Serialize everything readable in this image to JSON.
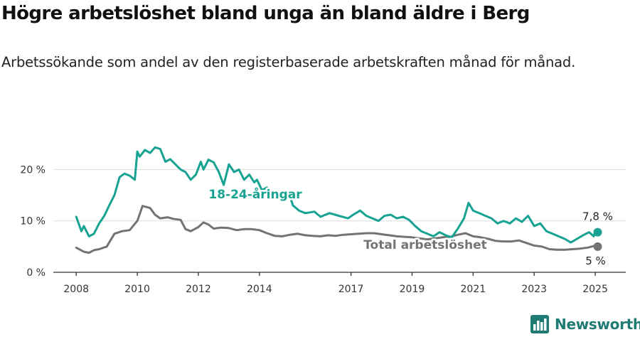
{
  "title": "Högre arbetslöshet bland unga än bland äldre i Berg",
  "subtitle": "Arbetssökande som andel av den registerbaserade arbetskraften månad för månad.",
  "brand": "Newsworthy",
  "colors": {
    "youth": "#17a292",
    "total": "#737373",
    "grid": "#dddddd",
    "axis": "#333333",
    "brand": "#1f7a73"
  },
  "chart_data": {
    "type": "line",
    "title": "Högre arbetslöshet bland unga än bland äldre i Berg",
    "subtitle": "Arbetssökande som andel av den registerbaserade arbetskraften månad för månad.",
    "x_ticks": [
      2008,
      2010,
      2012,
      2014,
      2017,
      2019,
      2021,
      2023,
      2025
    ],
    "y_ticks": [
      {
        "value": 0,
        "label": "0 %"
      },
      {
        "value": 10,
        "label": "10 %"
      },
      {
        "value": 20,
        "label": "20 %"
      }
    ],
    "xlim": [
      2007.25,
      2026.0
    ],
    "ylim": [
      0,
      26
    ],
    "grid": true,
    "series": [
      {
        "name": "18-24-åringar",
        "color": "#17a292",
        "last_label": "7,8 %",
        "points": [
          [
            2008.0,
            10.8
          ],
          [
            2008.17,
            8.0
          ],
          [
            2008.25,
            9.0
          ],
          [
            2008.42,
            7.0
          ],
          [
            2008.58,
            7.5
          ],
          [
            2008.75,
            9.5
          ],
          [
            2008.92,
            11.0
          ],
          [
            2009.08,
            13.0
          ],
          [
            2009.25,
            15.0
          ],
          [
            2009.42,
            18.5
          ],
          [
            2009.58,
            19.2
          ],
          [
            2009.75,
            18.8
          ],
          [
            2009.92,
            18.0
          ],
          [
            2010.0,
            23.5
          ],
          [
            2010.08,
            22.5
          ],
          [
            2010.25,
            23.8
          ],
          [
            2010.42,
            23.2
          ],
          [
            2010.58,
            24.3
          ],
          [
            2010.75,
            24.0
          ],
          [
            2010.92,
            21.5
          ],
          [
            2011.08,
            22.0
          ],
          [
            2011.25,
            21.0
          ],
          [
            2011.42,
            20.0
          ],
          [
            2011.58,
            19.5
          ],
          [
            2011.75,
            18.0
          ],
          [
            2011.92,
            19.0
          ],
          [
            2012.08,
            21.5
          ],
          [
            2012.17,
            20.0
          ],
          [
            2012.33,
            21.9
          ],
          [
            2012.5,
            21.4
          ],
          [
            2012.67,
            19.5
          ],
          [
            2012.83,
            17.0
          ],
          [
            2013.0,
            21.0
          ],
          [
            2013.17,
            19.5
          ],
          [
            2013.33,
            20.0
          ],
          [
            2013.5,
            18.0
          ],
          [
            2013.67,
            19.0
          ],
          [
            2013.83,
            17.5
          ],
          [
            2013.92,
            18.0
          ],
          [
            2014.08,
            16.0
          ],
          [
            2014.25,
            16.5
          ]
        ],
        "points_late": [
          [
            2015.0,
            14.8
          ],
          [
            2015.1,
            13.0
          ],
          [
            2015.3,
            12.0
          ],
          [
            2015.5,
            11.5
          ],
          [
            2015.8,
            11.8
          ],
          [
            2016.0,
            10.8
          ],
          [
            2016.3,
            11.5
          ],
          [
            2016.6,
            11.0
          ],
          [
            2016.9,
            10.5
          ],
          [
            2017.1,
            11.3
          ],
          [
            2017.3,
            12.0
          ],
          [
            2017.5,
            11.0
          ],
          [
            2017.7,
            10.5
          ],
          [
            2017.9,
            10.0
          ],
          [
            2018.1,
            11.0
          ],
          [
            2018.3,
            11.2
          ],
          [
            2018.5,
            10.5
          ],
          [
            2018.7,
            10.8
          ],
          [
            2018.9,
            10.2
          ],
          [
            2019.1,
            9.0
          ],
          [
            2019.3,
            8.0
          ],
          [
            2019.5,
            7.5
          ],
          [
            2019.7,
            7.0
          ],
          [
            2019.9,
            7.8
          ],
          [
            2020.1,
            7.2
          ],
          [
            2020.3,
            6.8
          ],
          [
            2020.5,
            8.5
          ],
          [
            2020.7,
            10.5
          ],
          [
            2020.85,
            13.5
          ],
          [
            2021.0,
            12.0
          ],
          [
            2021.2,
            11.5
          ],
          [
            2021.4,
            11.0
          ],
          [
            2021.6,
            10.5
          ],
          [
            2021.8,
            9.5
          ],
          [
            2022.0,
            10.0
          ],
          [
            2022.2,
            9.5
          ],
          [
            2022.4,
            10.5
          ],
          [
            2022.6,
            9.8
          ],
          [
            2022.8,
            11.0
          ],
          [
            2023.0,
            9.0
          ],
          [
            2023.2,
            9.5
          ],
          [
            2023.4,
            8.0
          ],
          [
            2023.6,
            7.5
          ],
          [
            2023.8,
            7.0
          ],
          [
            2024.0,
            6.5
          ],
          [
            2024.2,
            5.8
          ],
          [
            2024.4,
            6.5
          ],
          [
            2024.6,
            7.2
          ],
          [
            2024.8,
            7.8
          ],
          [
            2024.95,
            7.0
          ],
          [
            2025.0,
            8.0
          ],
          [
            2025.08,
            7.8
          ]
        ]
      },
      {
        "name": "Total arbetslöshet",
        "color": "#737373",
        "last_label": "5 %",
        "points": [
          [
            2008.0,
            4.8
          ],
          [
            2008.25,
            4.0
          ],
          [
            2008.42,
            3.8
          ],
          [
            2008.58,
            4.3
          ],
          [
            2008.75,
            4.5
          ],
          [
            2009.0,
            5.0
          ],
          [
            2009.25,
            7.5
          ],
          [
            2009.5,
            8.0
          ],
          [
            2009.75,
            8.2
          ],
          [
            2010.0,
            10.0
          ],
          [
            2010.17,
            12.9
          ],
          [
            2010.42,
            12.5
          ],
          [
            2010.58,
            11.2
          ],
          [
            2010.75,
            10.5
          ],
          [
            2011.0,
            10.7
          ],
          [
            2011.17,
            10.4
          ],
          [
            2011.42,
            10.2
          ],
          [
            2011.58,
            8.4
          ],
          [
            2011.75,
            8.0
          ],
          [
            2012.0,
            8.8
          ],
          [
            2012.17,
            9.7
          ],
          [
            2012.33,
            9.3
          ],
          [
            2012.5,
            8.5
          ],
          [
            2012.75,
            8.7
          ],
          [
            2013.0,
            8.6
          ],
          [
            2013.25,
            8.2
          ],
          [
            2013.5,
            8.4
          ],
          [
            2013.75,
            8.4
          ],
          [
            2014.0,
            8.2
          ],
          [
            2014.25,
            7.6
          ],
          [
            2014.5,
            7.1
          ],
          [
            2014.75,
            7.0
          ],
          [
            2015.0,
            7.3
          ],
          [
            2015.25,
            7.5
          ],
          [
            2015.5,
            7.2
          ],
          [
            2015.75,
            7.1
          ],
          [
            2016.0,
            7.0
          ],
          [
            2016.25,
            7.2
          ],
          [
            2016.5,
            7.1
          ],
          [
            2016.75,
            7.3
          ],
          [
            2017.0,
            7.4
          ],
          [
            2017.25,
            7.5
          ],
          [
            2017.5,
            7.6
          ],
          [
            2017.75,
            7.6
          ],
          [
            2018.0,
            7.4
          ],
          [
            2018.25,
            7.2
          ],
          [
            2018.5,
            7.0
          ],
          [
            2018.75,
            6.9
          ],
          [
            2019.0,
            6.8
          ],
          [
            2019.25,
            6.6
          ],
          [
            2019.5,
            6.4
          ],
          [
            2019.75,
            6.6
          ],
          [
            2020.0,
            6.8
          ],
          [
            2020.25,
            6.9
          ],
          [
            2020.5,
            7.3
          ],
          [
            2020.75,
            7.6
          ],
          [
            2021.0,
            7.0
          ],
          [
            2021.25,
            6.8
          ],
          [
            2021.5,
            6.5
          ],
          [
            2021.75,
            6.1
          ],
          [
            2022.0,
            6.0
          ],
          [
            2022.25,
            6.0
          ],
          [
            2022.5,
            6.2
          ],
          [
            2022.75,
            5.7
          ],
          [
            2023.0,
            5.2
          ],
          [
            2023.25,
            5.0
          ],
          [
            2023.5,
            4.5
          ],
          [
            2023.75,
            4.4
          ],
          [
            2024.0,
            4.4
          ],
          [
            2024.25,
            4.5
          ],
          [
            2024.5,
            4.6
          ],
          [
            2024.75,
            4.8
          ],
          [
            2025.0,
            5.2
          ],
          [
            2025.08,
            5.0
          ]
        ]
      }
    ],
    "labels": {
      "youth": "18-24-åringar",
      "total": "Total arbetslöshet"
    }
  }
}
